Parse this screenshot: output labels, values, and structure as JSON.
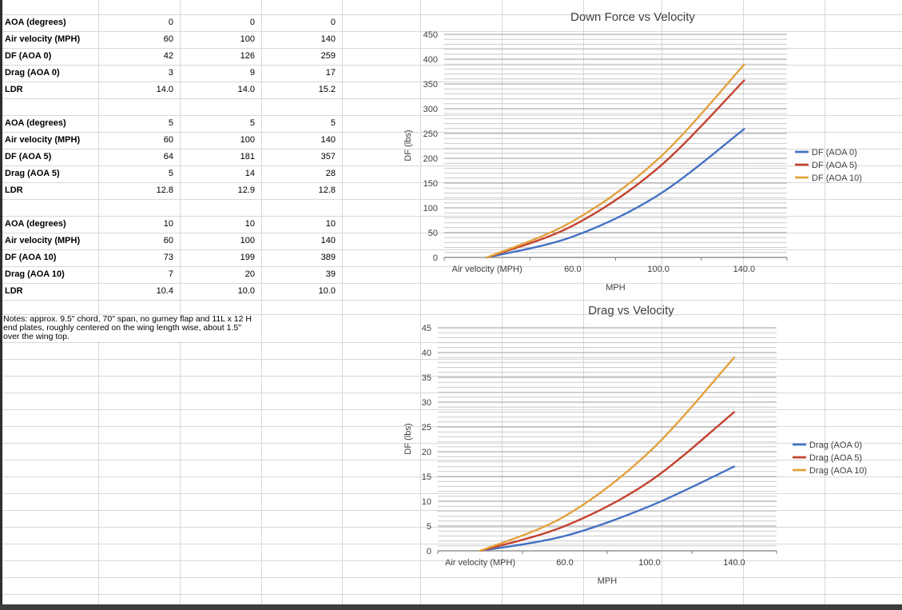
{
  "sheet": {
    "table": {
      "blocks": [
        {
          "rows": [
            {
              "label": "AOA (degrees)",
              "values": [
                "0",
                "0",
                "0"
              ]
            },
            {
              "label": "Air velocity (MPH)",
              "values": [
                "60",
                "100",
                "140"
              ]
            },
            {
              "label": "DF (AOA 0)",
              "values": [
                "42",
                "126",
                "259"
              ]
            },
            {
              "label": "Drag (AOA 0)",
              "values": [
                "3",
                "9",
                "17"
              ]
            },
            {
              "label": "LDR",
              "values": [
                "14.0",
                "14.0",
                "15.2"
              ]
            }
          ]
        },
        {
          "rows": [
            {
              "label": "AOA (degrees)",
              "values": [
                "5",
                "5",
                "5"
              ]
            },
            {
              "label": "Air velocity (MPH)",
              "values": [
                "60",
                "100",
                "140"
              ]
            },
            {
              "label": "DF (AOA 5)",
              "values": [
                "64",
                "181",
                "357"
              ]
            },
            {
              "label": "Drag (AOA 5)",
              "values": [
                "5",
                "14",
                "28"
              ]
            },
            {
              "label": "LDR",
              "values": [
                "12.8",
                "12.9",
                "12.8"
              ]
            }
          ]
        },
        {
          "rows": [
            {
              "label": "AOA (degrees)",
              "values": [
                "10",
                "10",
                "10"
              ]
            },
            {
              "label": "Air velocity (MPH)",
              "values": [
                "60",
                "100",
                "140"
              ]
            },
            {
              "label": "DF (AOA 10)",
              "values": [
                "73",
                "199",
                "389"
              ]
            },
            {
              "label": "Drag (AOA 10)",
              "values": [
                "7",
                "20",
                "39"
              ]
            },
            {
              "label": "LDR",
              "values": [
                "10.4",
                "10.0",
                "10.0"
              ]
            }
          ]
        }
      ]
    },
    "notes": "Notes: approx. 9.5\" chord, 70\" span, no gurney flap and 11L x 12 H end plates, roughly centered on the wing length wise, about 1.5\" over the wing top."
  },
  "chart_data": [
    {
      "type": "line",
      "title": "Down Force vs Velocity",
      "xlabel": "MPH",
      "ylabel": "DF (lbs)",
      "categories": [
        "Air velocity (MPH)",
        "60.0",
        "100.0",
        "140.0"
      ],
      "series": [
        {
          "name": "DF (AOA 0)",
          "color": "#4472C4",
          "values": [
            0,
            42,
            126,
            259
          ]
        },
        {
          "name": "DF (AOA 5)",
          "color": "#C5422F",
          "values": [
            0,
            64,
            181,
            357
          ]
        },
        {
          "name": "DF (AOA 10)",
          "color": "#E3A03C",
          "values": [
            0,
            73,
            199,
            389
          ]
        }
      ],
      "ylim": [
        0,
        450
      ],
      "ymajor": 50,
      "yminor": 10,
      "grid": "major+minor horizontal",
      "legend_position": "right",
      "smooth": true
    },
    {
      "type": "line",
      "title": "Drag vs Velocity",
      "xlabel": "MPH",
      "ylabel": "DF (lbs)",
      "categories": [
        "Air velocity (MPH)",
        "60.0",
        "100.0",
        "140.0"
      ],
      "series": [
        {
          "name": "Drag (AOA 0)",
          "color": "#4472C4",
          "values": [
            0,
            3,
            9,
            17
          ]
        },
        {
          "name": "Drag (AOA 5)",
          "color": "#C5422F",
          "values": [
            0,
            5,
            14,
            28
          ]
        },
        {
          "name": "Drag (AOA 10)",
          "color": "#E3A03C",
          "values": [
            0,
            7,
            20,
            39
          ]
        }
      ],
      "ylim": [
        0,
        45
      ],
      "ymajor": 5,
      "yminor": 1,
      "grid": "major+minor horizontal",
      "legend_position": "right",
      "smooth": true
    }
  ],
  "colors": {
    "series_blue": "#4472C4",
    "series_red": "#C5422F",
    "series_orange": "#E3A03C",
    "chart_text": "#404040",
    "grid_minor": "#c9c9c9",
    "grid_major": "#9b9b9b",
    "axis": "#7f7f7f",
    "sheet_grid": "#d8d8d8"
  }
}
